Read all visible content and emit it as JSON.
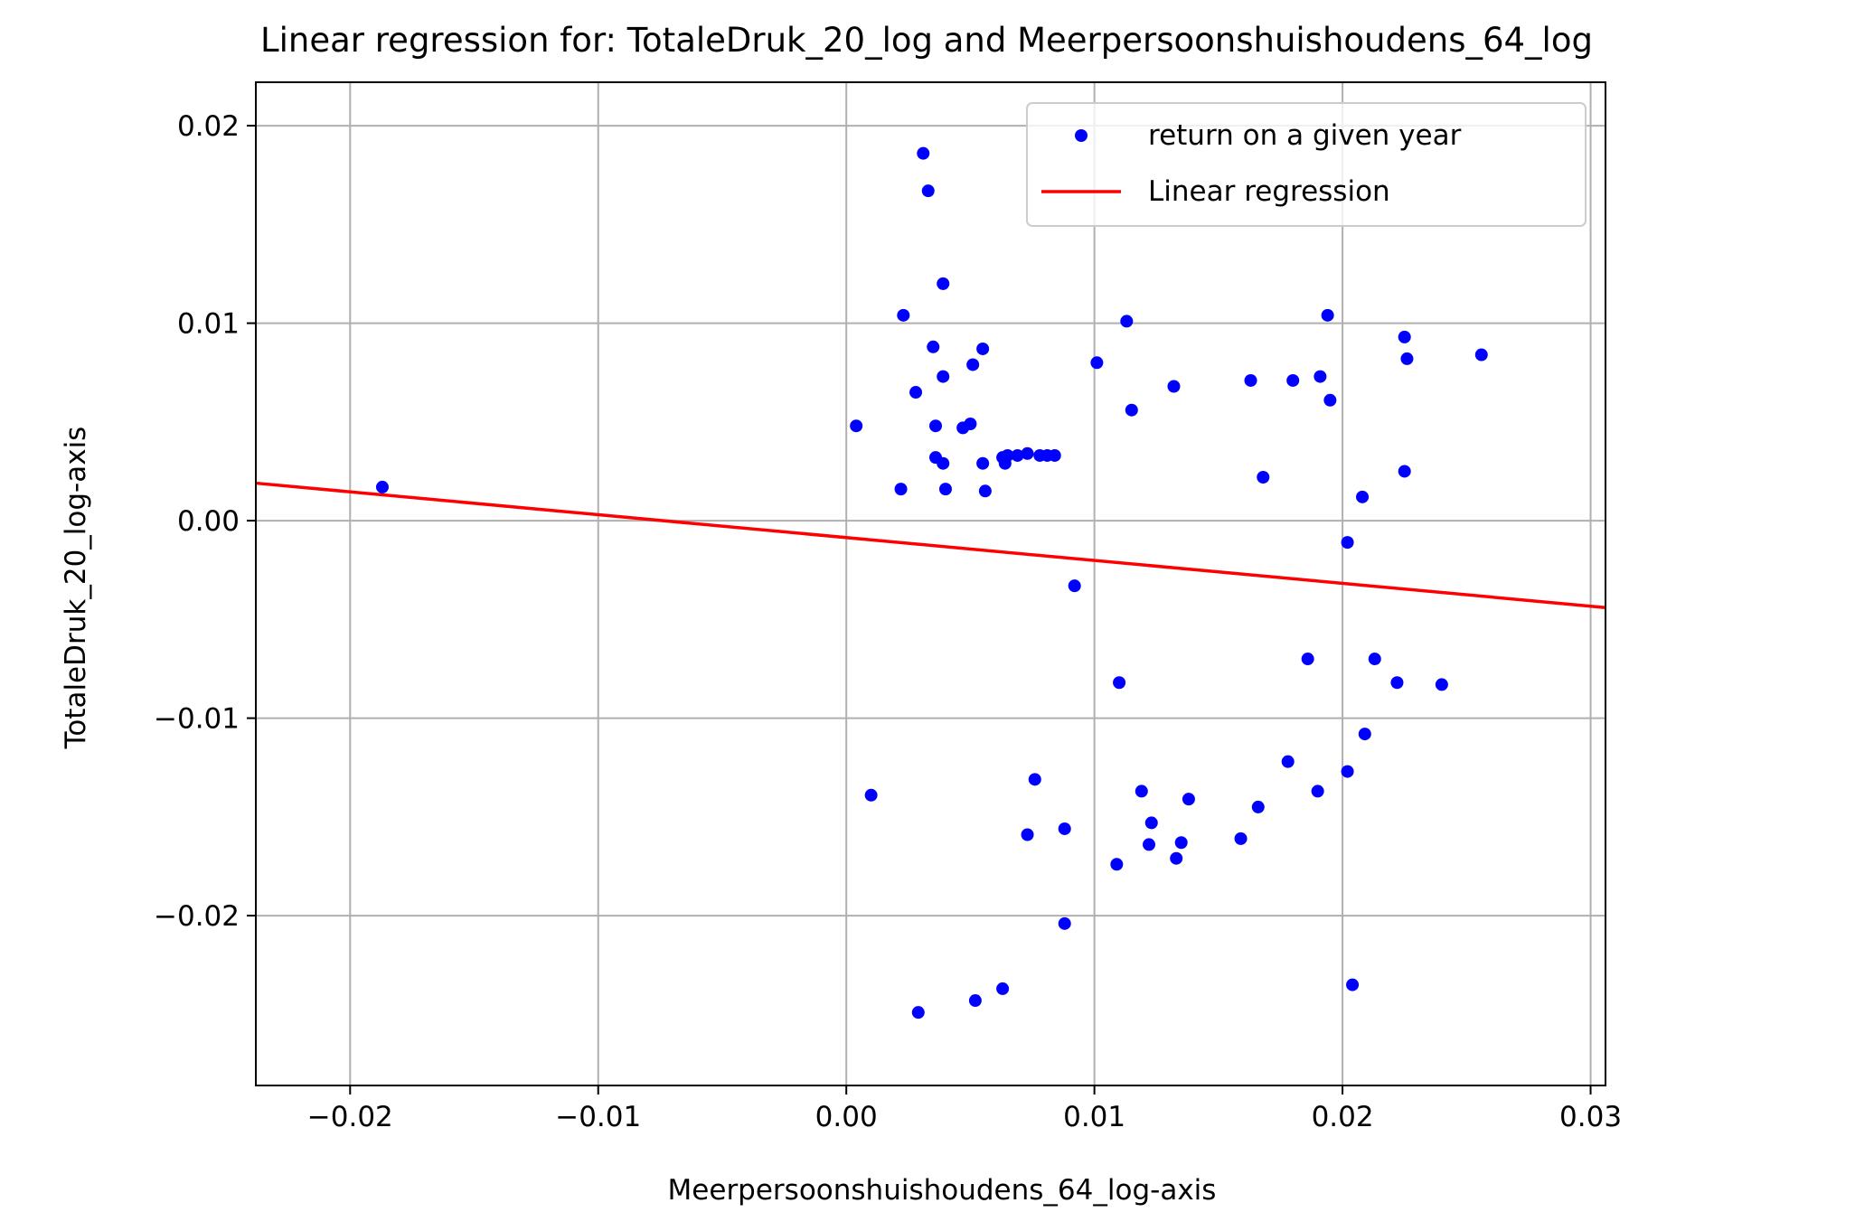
{
  "chart_data": {
    "type": "scatter",
    "title": "Linear regression for: TotaleDruk_20_log and Meerpersoonshuishoudens_64_log",
    "xlabel": "Meerpersoonshuishoudens_64_log-axis",
    "ylabel": "TotaleDruk_20_log-axis",
    "xlim": [
      -0.0238,
      0.0306
    ],
    "ylim": [
      -0.0286,
      0.0222
    ],
    "x_ticks": [
      -0.02,
      -0.01,
      0.0,
      0.01,
      0.02,
      0.03
    ],
    "x_tick_labels": [
      "−0.02",
      "−0.01",
      "0.00",
      "0.01",
      "0.02",
      "0.03"
    ],
    "y_ticks": [
      0.02,
      0.01,
      0.0,
      -0.01,
      -0.02
    ],
    "y_tick_labels": [
      "0.02",
      "0.01",
      "0.00",
      "−0.01",
      "−0.02"
    ],
    "grid": true,
    "legend_position": "top-right",
    "colors": {
      "points": "#0000ff",
      "line": "#ff0000",
      "grid": "#b0b0b0"
    },
    "series": [
      {
        "name": "return on a given year",
        "type": "scatter",
        "points": [
          [
            -0.0187,
            0.0017
          ],
          [
            0.0004,
            0.0048
          ],
          [
            0.001,
            -0.0139
          ],
          [
            0.0022,
            0.0016
          ],
          [
            0.0023,
            0.0104
          ],
          [
            0.0028,
            0.0065
          ],
          [
            0.0029,
            -0.0249
          ],
          [
            0.0031,
            0.0186
          ],
          [
            0.0033,
            0.0167
          ],
          [
            0.0035,
            0.0088
          ],
          [
            0.0036,
            0.0048
          ],
          [
            0.0036,
            0.0032
          ],
          [
            0.0039,
            0.012
          ],
          [
            0.0039,
            0.0073
          ],
          [
            0.0039,
            0.0029
          ],
          [
            0.004,
            0.0016
          ],
          [
            0.0047,
            0.0047
          ],
          [
            0.005,
            0.0049
          ],
          [
            0.0051,
            0.0079
          ],
          [
            0.0052,
            -0.0243
          ],
          [
            0.0055,
            0.0087
          ],
          [
            0.0055,
            0.0029
          ],
          [
            0.0056,
            0.0015
          ],
          [
            0.0063,
            -0.0237
          ],
          [
            0.0063,
            0.0032
          ],
          [
            0.0064,
            0.0029
          ],
          [
            0.0065,
            0.0033
          ],
          [
            0.0069,
            0.0033
          ],
          [
            0.0073,
            0.0034
          ],
          [
            0.0073,
            -0.0159
          ],
          [
            0.0076,
            -0.0131
          ],
          [
            0.0078,
            0.0033
          ],
          [
            0.0081,
            0.0033
          ],
          [
            0.0084,
            0.0033
          ],
          [
            0.0088,
            -0.0204
          ],
          [
            0.0088,
            -0.0156
          ],
          [
            0.0092,
            -0.0033
          ],
          [
            0.0101,
            0.008
          ],
          [
            0.0109,
            -0.0174
          ],
          [
            0.011,
            -0.0082
          ],
          [
            0.0113,
            0.0101
          ],
          [
            0.0115,
            0.0056
          ],
          [
            0.0119,
            -0.0137
          ],
          [
            0.0122,
            -0.0164
          ],
          [
            0.0123,
            -0.0153
          ],
          [
            0.0132,
            0.0068
          ],
          [
            0.0133,
            -0.0171
          ],
          [
            0.0135,
            -0.0163
          ],
          [
            0.0138,
            -0.0141
          ],
          [
            0.0159,
            -0.0161
          ],
          [
            0.0163,
            0.0071
          ],
          [
            0.0166,
            -0.0145
          ],
          [
            0.0168,
            0.0022
          ],
          [
            0.0178,
            -0.0122
          ],
          [
            0.018,
            0.0071
          ],
          [
            0.0186,
            -0.007
          ],
          [
            0.019,
            -0.0137
          ],
          [
            0.0191,
            0.0073
          ],
          [
            0.0194,
            0.0104
          ],
          [
            0.0195,
            0.0061
          ],
          [
            0.0202,
            -0.0127
          ],
          [
            0.0202,
            -0.0011
          ],
          [
            0.0204,
            -0.0235
          ],
          [
            0.0208,
            0.0012
          ],
          [
            0.0209,
            -0.0108
          ],
          [
            0.0213,
            -0.007
          ],
          [
            0.0222,
            -0.0082
          ],
          [
            0.0225,
            0.0093
          ],
          [
            0.0225,
            0.0025
          ],
          [
            0.0226,
            0.0082
          ],
          [
            0.024,
            -0.0083
          ],
          [
            0.0256,
            0.0084
          ]
        ]
      },
      {
        "name": "Linear regression",
        "type": "line",
        "points": [
          [
            -0.0238,
            0.0019
          ],
          [
            0.0306,
            -0.0044
          ]
        ]
      }
    ]
  }
}
